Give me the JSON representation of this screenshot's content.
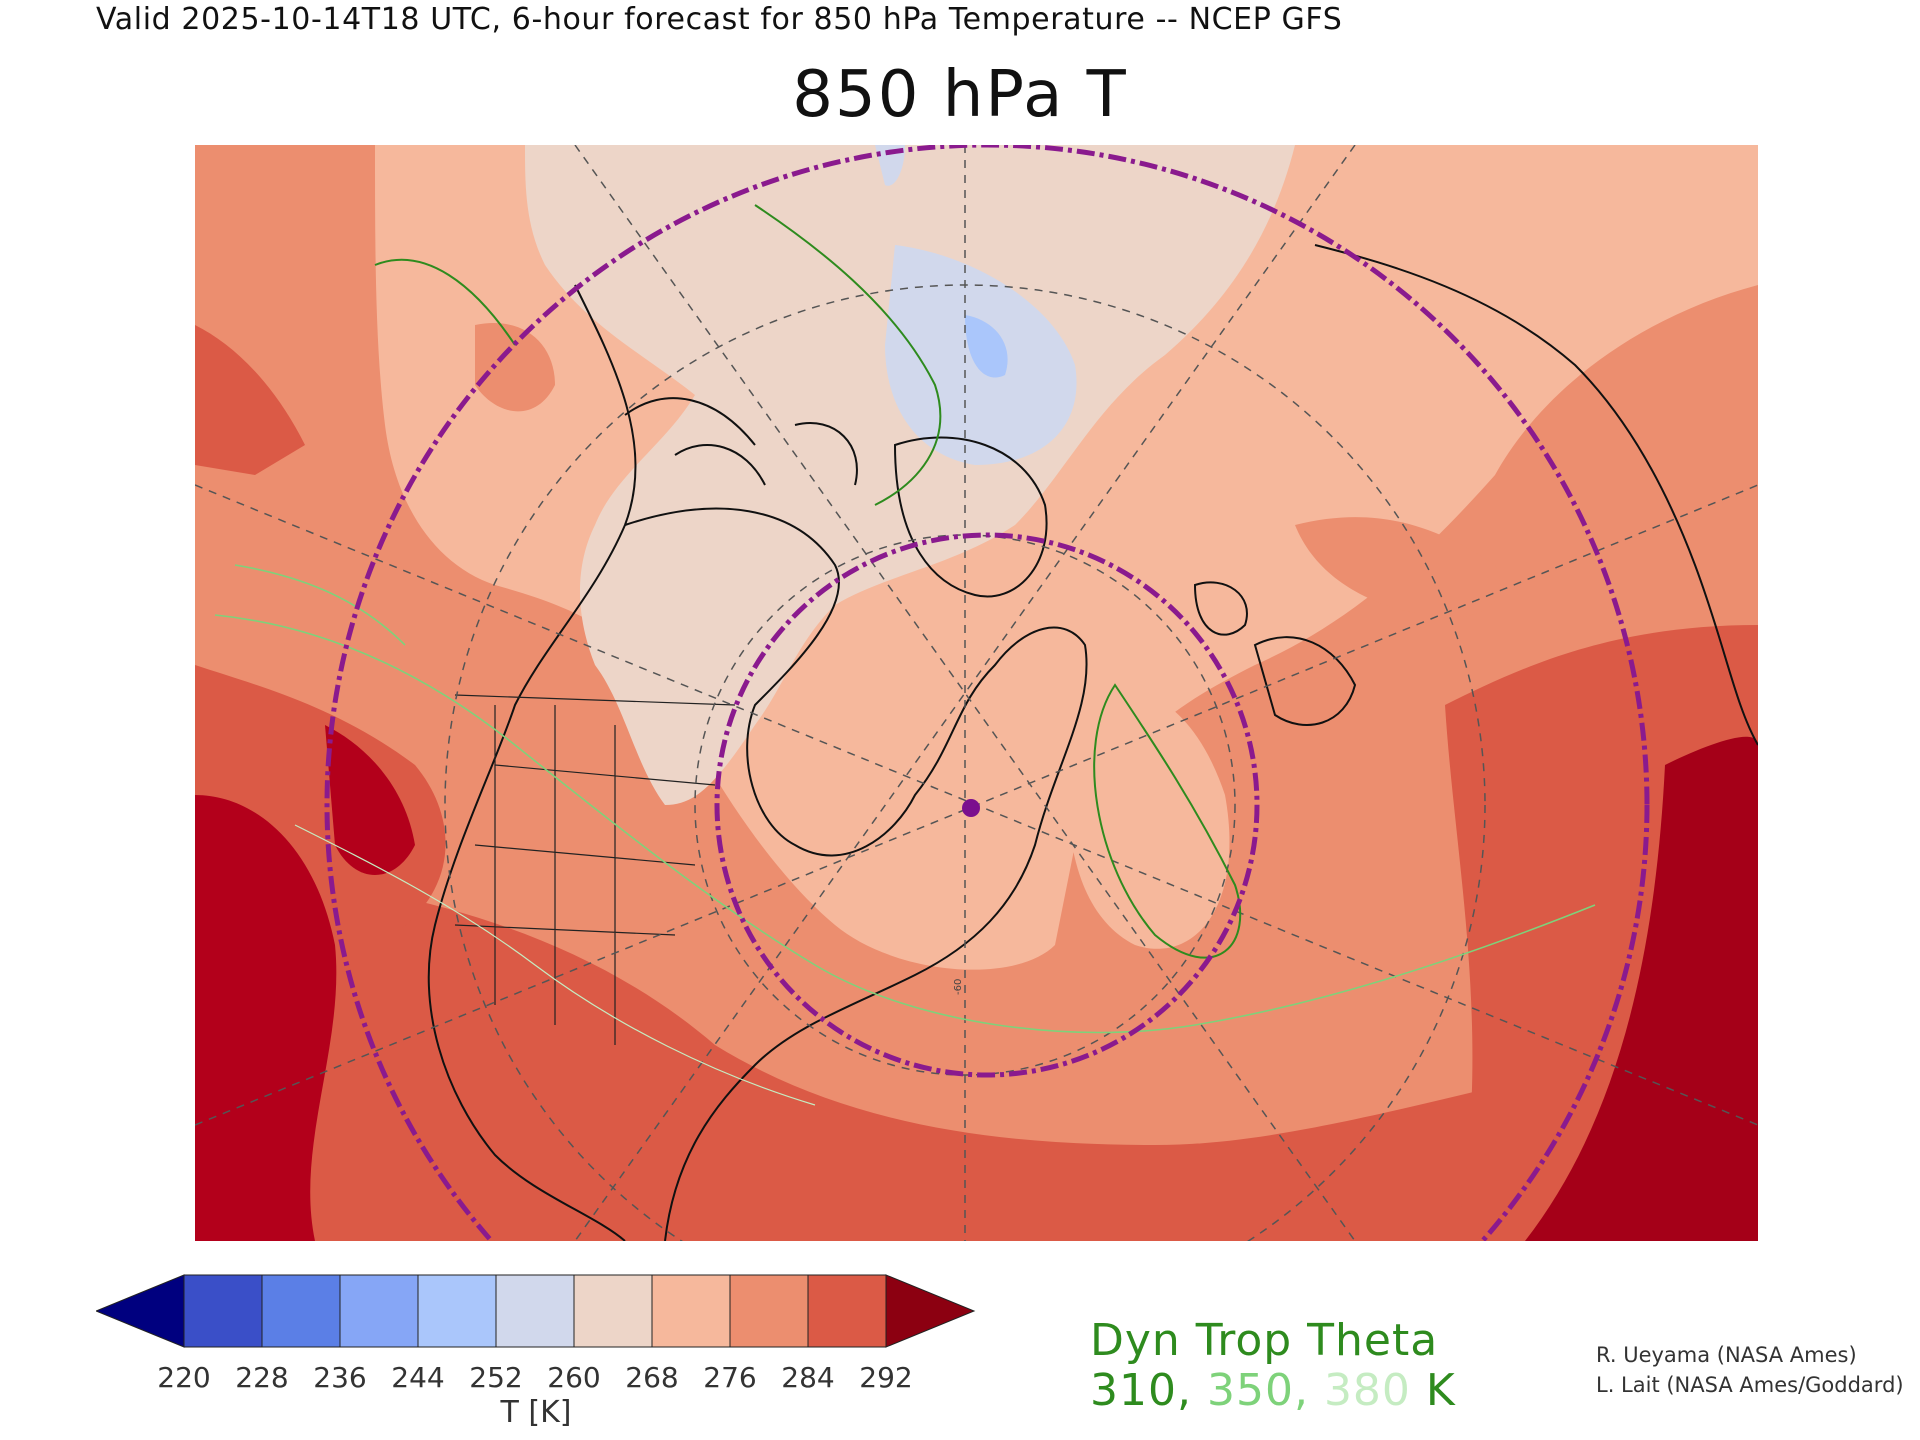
{
  "header": {
    "valid_line": "Valid 2025-10-14T18 UTC, 6-hour forecast for 850 hPa Temperature -- NCEP GFS"
  },
  "title": "850 hPa T",
  "map": {
    "marker_color": "#7b0f8e",
    "circle_color": "#8a1a8e",
    "ring_label": "-60"
  },
  "colorbar": {
    "label": "T [K]",
    "ticks": [
      "220",
      "228",
      "236",
      "244",
      "252",
      "260",
      "268",
      "276",
      "284",
      "292"
    ],
    "colors": [
      "#00007f",
      "#3a4fc8",
      "#5b7fe6",
      "#86a6f6",
      "#aac6fb",
      "#d1d8ec",
      "#edd5c8",
      "#f6b89c",
      "#ec8e6f",
      "#db5a46",
      "#8c0011"
    ]
  },
  "tropopause": {
    "title": "Dyn Trop Theta",
    "values": [
      {
        "text": "310,",
        "color": "#2e8b1e"
      },
      {
        "text": "350,",
        "color": "#7ed27a"
      },
      {
        "text": "380",
        "color": "#c5ecc2"
      },
      {
        "text": "K",
        "color": "#2e8b1e"
      }
    ]
  },
  "credits": [
    "R. Ueyama (NASA Ames)",
    "L. Lait (NASA Ames/Goddard)"
  ]
}
